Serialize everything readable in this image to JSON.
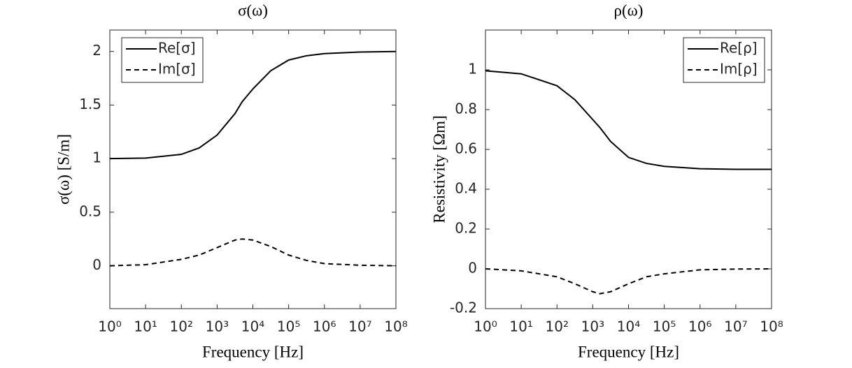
{
  "chart_data": [
    {
      "type": "line",
      "title": "σ(ω)",
      "x_label": "Frequency [Hz]",
      "y_label": "σ(ω) [S/m]",
      "x": [
        1,
        10,
        100,
        316,
        1000,
        3162,
        5000,
        10000,
        31623,
        100000,
        316228,
        1000000,
        10000000,
        100000000
      ],
      "series": [
        {
          "name": "Re[σ]",
          "color": "#000000",
          "style": "solid",
          "values": [
            1.0,
            1.005,
            1.04,
            1.1,
            1.22,
            1.42,
            1.53,
            1.65,
            1.82,
            1.92,
            1.96,
            1.98,
            1.995,
            2.0
          ]
        },
        {
          "name": "Im[σ]",
          "color": "#000000",
          "style": "dashed",
          "values": [
            0.0,
            0.01,
            0.06,
            0.1,
            0.17,
            0.24,
            0.25,
            0.24,
            0.18,
            0.1,
            0.05,
            0.02,
            0.005,
            0.0
          ]
        }
      ],
      "xscale": "log",
      "xlim": [
        1,
        100000000
      ],
      "xticks": [
        {
          "value": 1,
          "label": "10⁰"
        },
        {
          "value": 10,
          "label": "10¹"
        },
        {
          "value": 100,
          "label": "10²"
        },
        {
          "value": 1000,
          "label": "10³"
        },
        {
          "value": 10000,
          "label": "10⁴"
        },
        {
          "value": 100000,
          "label": "10⁵"
        },
        {
          "value": 1000000,
          "label": "10⁶"
        },
        {
          "value": 10000000,
          "label": "10⁷"
        },
        {
          "value": 100000000,
          "label": "10⁸"
        }
      ],
      "ylim": [
        -0.4,
        2.2
      ],
      "yticks": [
        0,
        0.5,
        1,
        1.5,
        2
      ],
      "legend": "upper left"
    },
    {
      "type": "line",
      "title": "ρ(ω)",
      "x_label": "Frequency [Hz]",
      "y_label": "Resistivity [Ωm]",
      "x": [
        1,
        10,
        100,
        316,
        1000,
        1585,
        3162,
        10000,
        31623,
        100000,
        1000000,
        10000000,
        100000000
      ],
      "series": [
        {
          "name": "Re[ρ]",
          "color": "#000000",
          "style": "solid",
          "values": [
            0.995,
            0.98,
            0.92,
            0.85,
            0.75,
            0.71,
            0.64,
            0.56,
            0.53,
            0.515,
            0.503,
            0.5,
            0.5
          ]
        },
        {
          "name": "Im[ρ]",
          "color": "#000000",
          "style": "dashed",
          "values": [
            0.0,
            -0.01,
            -0.04,
            -0.075,
            -0.115,
            -0.125,
            -0.115,
            -0.075,
            -0.04,
            -0.025,
            -0.005,
            -0.001,
            0.0
          ]
        }
      ],
      "xscale": "log",
      "xlim": [
        1,
        100000000
      ],
      "xticks": [
        {
          "value": 1,
          "label": "10⁰"
        },
        {
          "value": 10,
          "label": "10¹"
        },
        {
          "value": 100,
          "label": "10²"
        },
        {
          "value": 1000,
          "label": "10³"
        },
        {
          "value": 10000,
          "label": "10⁴"
        },
        {
          "value": 100000,
          "label": "10⁵"
        },
        {
          "value": 1000000,
          "label": "10⁶"
        },
        {
          "value": 10000000,
          "label": "10⁷"
        },
        {
          "value": 100000000,
          "label": "10⁸"
        }
      ],
      "ylim": [
        -0.2,
        1.2
      ],
      "yticks": [
        -0.2,
        0,
        0.2,
        0.4,
        0.6,
        0.8,
        1
      ],
      "legend": "upper right"
    }
  ]
}
